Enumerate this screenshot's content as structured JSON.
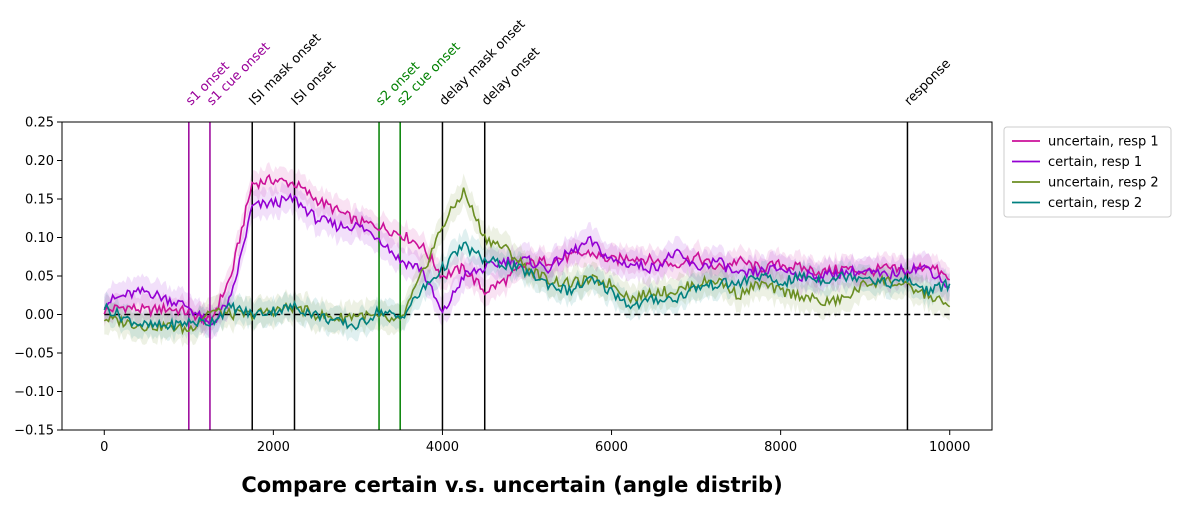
{
  "chart_data": {
    "type": "line",
    "title": "Compare certain v.s. uncertain (angle distrib)",
    "xlabel": "",
    "ylabel": "",
    "xlim": [
      -500,
      10500
    ],
    "ylim": [
      -0.15,
      0.25
    ],
    "xticks": [
      0,
      2000,
      4000,
      6000,
      8000,
      10000
    ],
    "xtick_labels": [
      "0",
      "2000",
      "4000",
      "6000",
      "8000",
      "10000"
    ],
    "yticks": [
      -0.15,
      -0.1,
      -0.05,
      0.0,
      0.05,
      0.1,
      0.15,
      0.2,
      0.25
    ],
    "ytick_labels": [
      "−0.15",
      "−0.10",
      "−0.05",
      "0.00",
      "0.05",
      "0.10",
      "0.15",
      "0.20",
      "0.25"
    ],
    "grid": false,
    "legend_position": "outside-top-right",
    "zero_line": {
      "y": 0,
      "style": "dashed",
      "color": "#000000"
    },
    "events": [
      {
        "x": 1000,
        "label": "s1 onset",
        "color": "#990099"
      },
      {
        "x": 1250,
        "label": "s1 cue onset",
        "color": "#990099"
      },
      {
        "x": 1750,
        "label": "ISI mask onset",
        "color": "#000000"
      },
      {
        "x": 2250,
        "label": "ISI onset",
        "color": "#000000"
      },
      {
        "x": 3250,
        "label": "s2 onset",
        "color": "#008000"
      },
      {
        "x": 3500,
        "label": "s2 cue onset",
        "color": "#008000"
      },
      {
        "x": 4000,
        "label": "delay mask onset",
        "color": "#000000"
      },
      {
        "x": 4500,
        "label": "delay onset",
        "color": "#000000"
      },
      {
        "x": 9500,
        "label": "response",
        "color": "#000000"
      }
    ],
    "x": [
      0,
      250,
      500,
      750,
      1000,
      1250,
      1500,
      1750,
      2000,
      2250,
      2500,
      2750,
      3000,
      3250,
      3500,
      3750,
      4000,
      4250,
      4500,
      4750,
      5000,
      5250,
      5500,
      5750,
      6000,
      6250,
      6500,
      6750,
      7000,
      7250,
      7500,
      7750,
      8000,
      8250,
      8500,
      8750,
      9000,
      9250,
      9500,
      9750,
      10000
    ],
    "series": [
      {
        "name": "uncertain, resp 1",
        "color": "#cc1199",
        "values": [
          0.005,
          0.01,
          0.005,
          0.008,
          0.003,
          -0.01,
          0.05,
          0.17,
          0.175,
          0.17,
          0.15,
          0.135,
          0.12,
          0.115,
          0.105,
          0.09,
          0.05,
          0.06,
          0.03,
          0.045,
          0.065,
          0.07,
          0.075,
          0.08,
          0.07,
          0.075,
          0.07,
          0.065,
          0.075,
          0.06,
          0.07,
          0.06,
          0.065,
          0.06,
          0.055,
          0.06,
          0.055,
          0.06,
          0.055,
          0.065,
          0.045
        ],
        "band": 0.018
      },
      {
        "name": "certain, resp 1",
        "color": "#9400d3",
        "values": [
          0.015,
          0.025,
          0.03,
          0.02,
          0.01,
          -0.015,
          0.02,
          0.14,
          0.145,
          0.15,
          0.125,
          0.115,
          0.115,
          0.1,
          0.07,
          0.06,
          0.0,
          0.05,
          0.06,
          0.07,
          0.07,
          0.06,
          0.08,
          0.095,
          0.07,
          0.065,
          0.06,
          0.08,
          0.06,
          0.07,
          0.05,
          0.055,
          0.06,
          0.05,
          0.05,
          0.055,
          0.055,
          0.05,
          0.06,
          0.06,
          0.035
        ],
        "band": 0.02
      },
      {
        "name": "uncertain, resp 2",
        "color": "#6b8e23",
        "values": [
          -0.005,
          -0.01,
          -0.015,
          -0.015,
          -0.02,
          0.005,
          0.0,
          0.0,
          0.005,
          0.01,
          0.0,
          -0.005,
          0.0,
          -0.005,
          -0.01,
          0.05,
          0.115,
          0.16,
          0.1,
          0.085,
          0.06,
          0.045,
          0.04,
          0.045,
          0.04,
          0.02,
          0.03,
          0.03,
          0.04,
          0.045,
          0.025,
          0.04,
          0.03,
          0.025,
          0.015,
          0.02,
          0.04,
          0.045,
          0.035,
          0.025,
          0.01
        ],
        "band": 0.02
      },
      {
        "name": "certain, resp 2",
        "color": "#008080",
        "values": [
          0.01,
          -0.005,
          -0.015,
          -0.015,
          -0.01,
          -0.01,
          0.01,
          0.0,
          0.005,
          0.01,
          0.0,
          -0.01,
          -0.015,
          0.005,
          -0.005,
          0.03,
          0.06,
          0.09,
          0.07,
          0.065,
          0.055,
          0.04,
          0.03,
          0.045,
          0.03,
          0.01,
          0.02,
          0.02,
          0.035,
          0.04,
          0.04,
          0.05,
          0.04,
          0.05,
          0.045,
          0.05,
          0.05,
          0.04,
          0.045,
          0.03,
          0.04
        ],
        "band": 0.018
      }
    ]
  }
}
